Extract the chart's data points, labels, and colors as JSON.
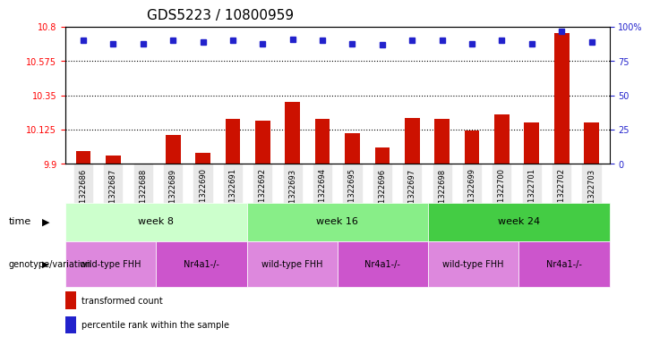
{
  "title": "GDS5223 / 10800959",
  "samples": [
    "GSM1322686",
    "GSM1322687",
    "GSM1322688",
    "GSM1322689",
    "GSM1322690",
    "GSM1322691",
    "GSM1322692",
    "GSM1322693",
    "GSM1322694",
    "GSM1322695",
    "GSM1322696",
    "GSM1322697",
    "GSM1322698",
    "GSM1322699",
    "GSM1322700",
    "GSM1322701",
    "GSM1322702",
    "GSM1322703"
  ],
  "red_values": [
    9.985,
    9.955,
    9.902,
    10.09,
    9.975,
    10.195,
    10.185,
    10.31,
    10.195,
    10.105,
    10.01,
    10.2,
    10.195,
    10.12,
    10.225,
    10.17,
    10.76,
    10.17
  ],
  "blue_values": [
    90,
    88,
    88,
    90,
    89,
    90,
    88,
    91,
    90,
    88,
    87,
    90,
    90,
    88,
    90,
    88,
    97,
    89
  ],
  "ymin": 9.9,
  "ymax": 10.8,
  "yticks": [
    9.9,
    10.125,
    10.35,
    10.575,
    10.8
  ],
  "ytick_labels": [
    "9.9",
    "10.125",
    "10.35",
    "10.575",
    "10.8"
  ],
  "right_yticks": [
    0,
    25,
    50,
    75,
    100
  ],
  "right_ytick_labels": [
    "0",
    "25",
    "50",
    "75",
    "100%"
  ],
  "dotted_lines": [
    10.125,
    10.35,
    10.575
  ],
  "bar_color": "#CC1100",
  "dot_color": "#2222CC",
  "bg_color": "#E8E8E8",
  "week8_color": "#CCFFCC",
  "week16_color": "#88EE88",
  "week24_color": "#44CC44",
  "wt_color": "#DD88DD",
  "nr_color": "#CC55CC",
  "week8_samples": [
    0,
    5
  ],
  "week16_samples": [
    6,
    11
  ],
  "week24_samples": [
    12,
    17
  ],
  "wt_week8": [
    0,
    2
  ],
  "nr_week8": [
    3,
    5
  ],
  "wt_week16": [
    6,
    8
  ],
  "nr_week16": [
    9,
    11
  ],
  "wt_week24": [
    12,
    14
  ],
  "nr_week24": [
    15,
    17
  ]
}
